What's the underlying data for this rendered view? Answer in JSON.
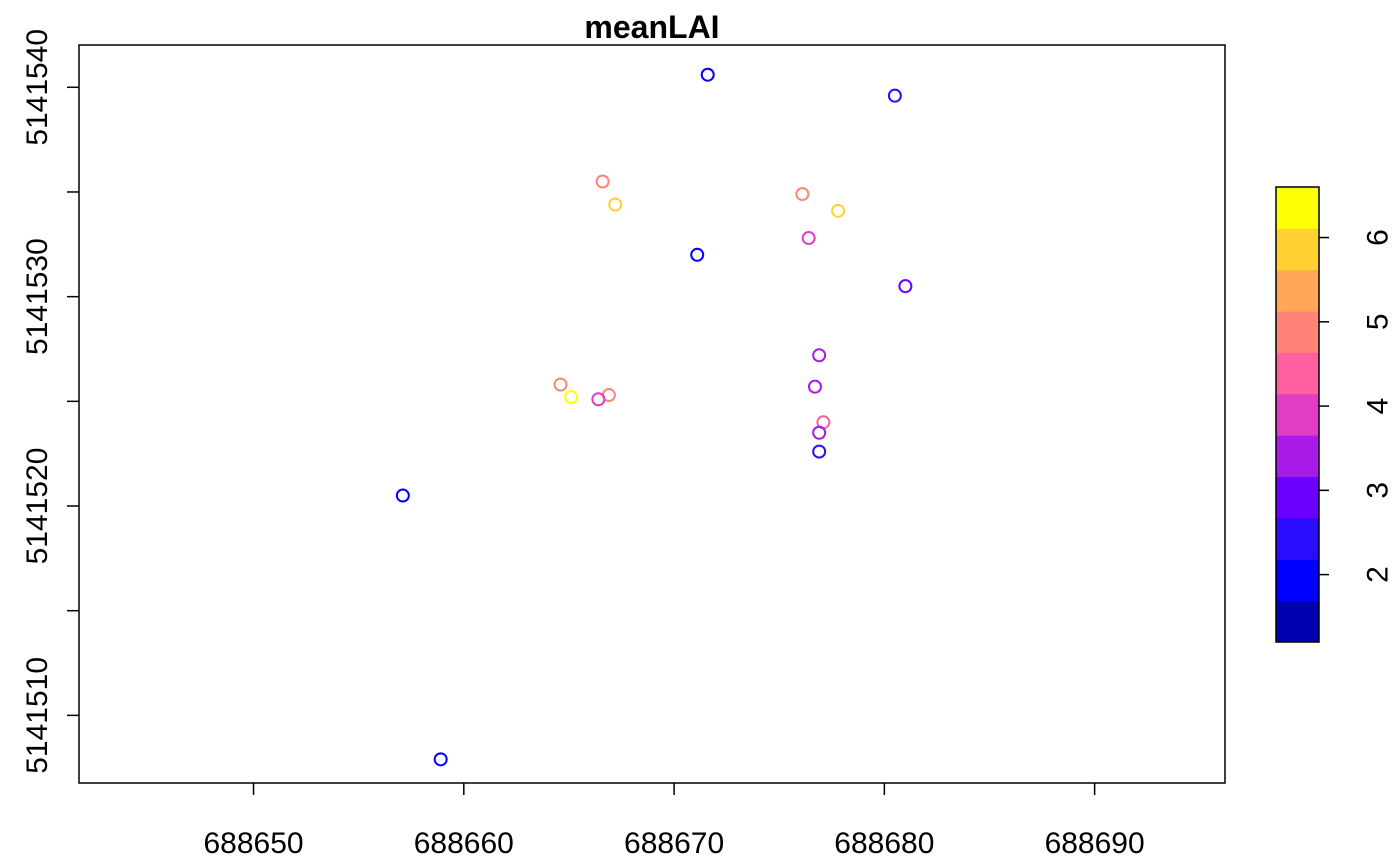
{
  "chart_data": {
    "type": "scatter",
    "title": "meanLAI",
    "xlabel": "",
    "ylabel": "",
    "xlim": [
      688641.7,
      688696.2
    ],
    "ylim": [
      5141506.77,
      5141542.02
    ],
    "x_ticks": [
      688650,
      688660,
      688670,
      688680,
      688690
    ],
    "x_tick_labels": [
      "688650",
      "688660",
      "688670",
      "688680",
      "688690"
    ],
    "y_ticks": [
      5141510,
      5141515,
      5141520,
      5141525,
      5141530,
      5141535,
      5141540
    ],
    "y_tick_labels": [
      "5141510",
      "",
      "5141520",
      "",
      "5141530",
      "",
      "5141540"
    ],
    "grid": false,
    "marker": "open-circle",
    "color_scale": {
      "range": [
        1.2,
        6.6
      ],
      "bin_colors": [
        "#0000B0",
        "#0000FF",
        "#2A0DFF",
        "#6A00FF",
        "#A81AE8",
        "#E03CC6",
        "#FF60A0",
        "#FF8377",
        "#FFA658",
        "#FFD030",
        "#FFFF05"
      ],
      "ticks": [
        2,
        3,
        4,
        5,
        6
      ],
      "tick_labels": [
        "2",
        "3",
        "4",
        "5",
        "6"
      ]
    },
    "points": [
      {
        "x": 688671.6,
        "y": 5141540.6,
        "value": 2.0
      },
      {
        "x": 688680.5,
        "y": 5141539.6,
        "value": 2.3
      },
      {
        "x": 688666.6,
        "y": 5141535.5,
        "value": 4.9
      },
      {
        "x": 688676.1,
        "y": 5141534.9,
        "value": 5.0
      },
      {
        "x": 688667.2,
        "y": 5141534.4,
        "value": 6.0
      },
      {
        "x": 688677.8,
        "y": 5141534.1,
        "value": 6.0
      },
      {
        "x": 688676.4,
        "y": 5141532.8,
        "value": 3.8
      },
      {
        "x": 688671.1,
        "y": 5141532.0,
        "value": 1.9
      },
      {
        "x": 688681.0,
        "y": 5141530.5,
        "value": 2.7
      },
      {
        "x": 688676.9,
        "y": 5141527.2,
        "value": 3.3
      },
      {
        "x": 688664.6,
        "y": 5141525.8,
        "value": 5.1
      },
      {
        "x": 688676.7,
        "y": 5141525.7,
        "value": 3.6
      },
      {
        "x": 688666.9,
        "y": 5141525.3,
        "value": 5.1
      },
      {
        "x": 688665.1,
        "y": 5141525.2,
        "value": 6.4
      },
      {
        "x": 688666.4,
        "y": 5141525.1,
        "value": 3.9
      },
      {
        "x": 688677.1,
        "y": 5141524.0,
        "value": 4.6
      },
      {
        "x": 688676.9,
        "y": 5141523.5,
        "value": 3.2
      },
      {
        "x": 688676.9,
        "y": 5141522.6,
        "value": 2.6
      },
      {
        "x": 688657.1,
        "y": 5141520.5,
        "value": 1.9
      },
      {
        "x": 688658.9,
        "y": 5141507.9,
        "value": 1.9
      }
    ]
  }
}
